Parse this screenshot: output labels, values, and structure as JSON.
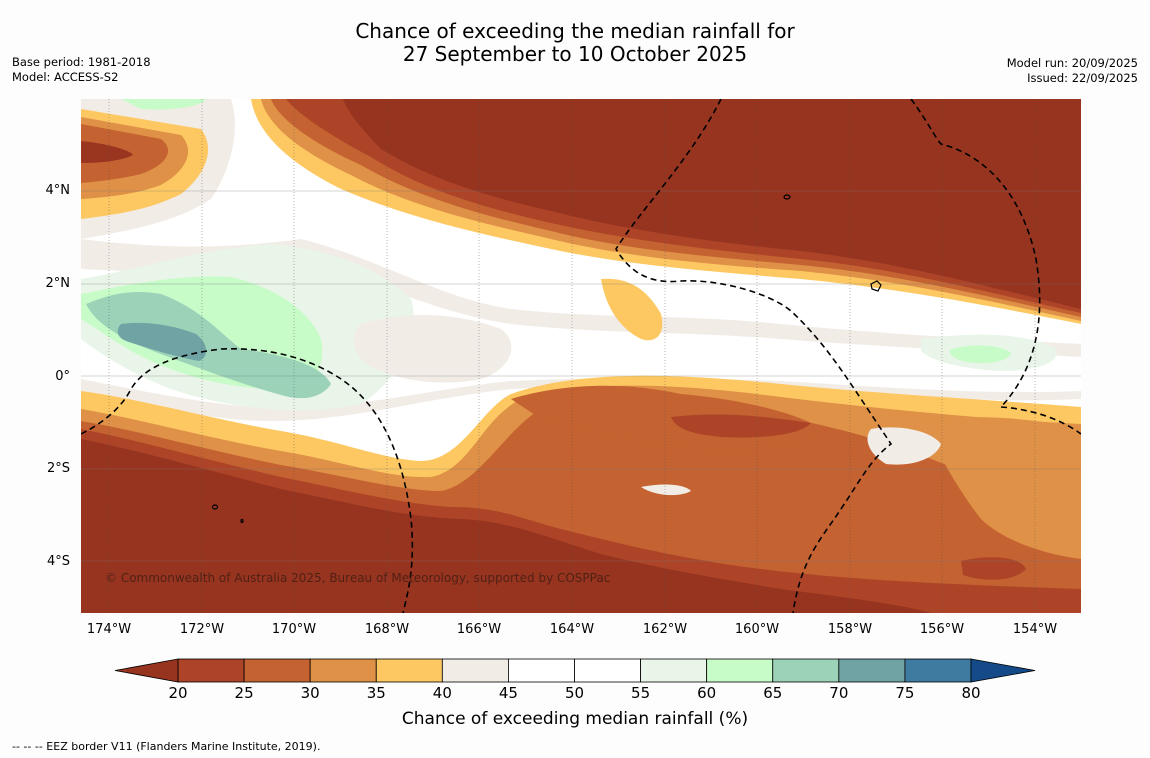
{
  "title": {
    "line1": "Chance of exceeding the median rainfall for",
    "line2": "27 September to 10 October 2025"
  },
  "meta": {
    "base_period": "Base period: 1981-2018",
    "model": "Model: ACCESS-S2",
    "model_run": "Model run: 20/09/2025",
    "issued": "Issued: 22/09/2025"
  },
  "map": {
    "copyright": "© Commonwealth of Australia 2025, Bureau of Meteorology, supported by COSPPac",
    "lat_labels": [
      "4°N",
      "2°N",
      "0°",
      "2°S",
      "4°S"
    ],
    "lon_labels": [
      "174°W",
      "172°W",
      "170°W",
      "168°W",
      "166°W",
      "164°W",
      "162°W",
      "160°W",
      "158°W",
      "156°W",
      "154°W"
    ]
  },
  "colorbar": {
    "title": "Chance of exceeding median rainfall (%)",
    "ticks": [
      "20",
      "25",
      "30",
      "35",
      "40",
      "45",
      "50",
      "55",
      "60",
      "65",
      "70",
      "75",
      "80"
    ],
    "colors": [
      "#9a3520",
      "#ad4428",
      "#c46231",
      "#df9147",
      "#fdc862",
      "#f1ece6",
      "#ffffff",
      "#ffffff",
      "#e9f5e8",
      "#c7fbc8",
      "#9bd2b8",
      "#6fa3a4",
      "#3f7aa0"
    ],
    "under_color": "#963420",
    "over_color": "#144a88"
  },
  "footnote": "--  --  -- EEZ border V11 (Flanders Marine Institute, 2019)."
}
